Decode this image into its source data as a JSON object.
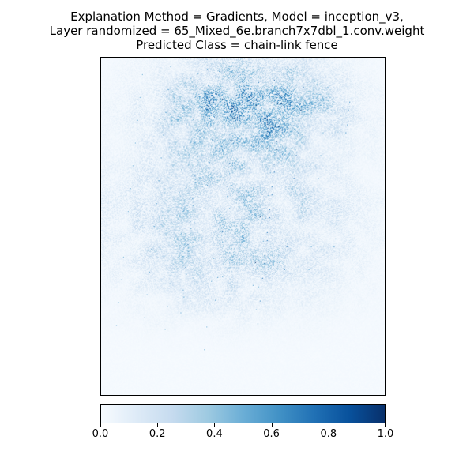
{
  "title_lines": [
    "Explanation Method = Gradients, Model = inception_v3,",
    "Layer randomized = 65_Mixed_6e.branch7x7dbl_1.conv.weight",
    "Predicted Class = chain-link fence"
  ],
  "chart_data": {
    "type": "heatmap",
    "title": "Explanation Method = Gradients, Model = inception_v3, Layer randomized = 65_Mixed_6e.branch7x7dbl_1.conv.weight, Predicted Class = chain-link fence",
    "colormap": "Blues",
    "colorbar": {
      "orientation": "horizontal",
      "range": [
        0.0,
        1.0
      ],
      "ticks": [
        "0.0",
        "0.2",
        "0.4",
        "0.6",
        "0.8",
        "1.0"
      ]
    },
    "axes": {
      "xticks": "hidden",
      "yticks": "hidden"
    },
    "color_stops": [
      "#f7fbff",
      "#deebf7",
      "#c6dbef",
      "#9ecae1",
      "#6baed6",
      "#4292c6",
      "#2171b5",
      "#08519c",
      "#08306b"
    ]
  }
}
